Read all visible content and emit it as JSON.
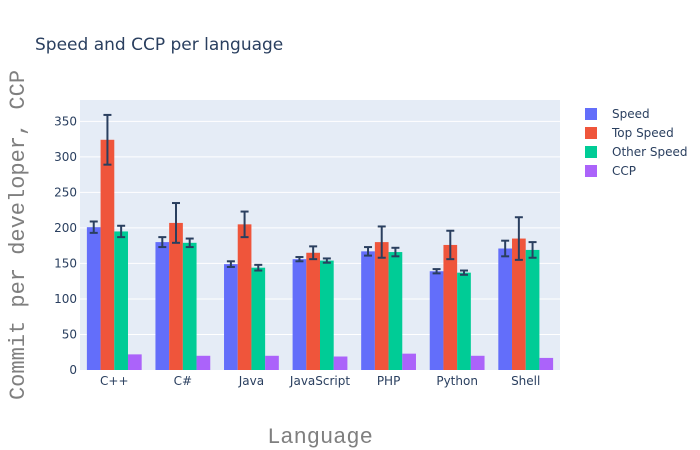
{
  "chart_data": {
    "type": "bar",
    "title": "Speed and CCP per language",
    "xlabel": "Language",
    "ylabel": "Commit per developer, CCP",
    "ylim": [
      0,
      380
    ],
    "yticks": [
      0,
      50,
      100,
      150,
      200,
      250,
      300,
      350
    ],
    "grid": true,
    "legend_position": "right",
    "categories": [
      "C++",
      "C#",
      "Java",
      "JavaScript",
      "PHP",
      "Python",
      "Shell"
    ],
    "series": [
      {
        "name": "Speed",
        "color": "#636efa",
        "values": [
          201,
          180,
          149,
          156,
          167,
          139,
          171
        ],
        "errors": [
          8,
          7,
          4,
          3,
          6,
          3,
          11
        ]
      },
      {
        "name": "Top Speed",
        "color": "#ef553b",
        "values": [
          324,
          207,
          205,
          165,
          180,
          176,
          185
        ],
        "errors": [
          35,
          28,
          18,
          9,
          22,
          20,
          30
        ]
      },
      {
        "name": "Other Speed",
        "color": "#00cc96",
        "values": [
          195,
          179,
          144,
          154,
          166,
          137,
          169
        ],
        "errors": [
          8,
          6,
          4,
          3,
          6,
          3,
          11
        ]
      },
      {
        "name": "CCP",
        "color": "#ab63fa",
        "values": [
          22,
          20,
          20,
          19,
          23,
          20,
          17
        ],
        "errors": [
          0,
          0,
          0,
          0,
          0,
          0,
          0
        ]
      }
    ]
  }
}
